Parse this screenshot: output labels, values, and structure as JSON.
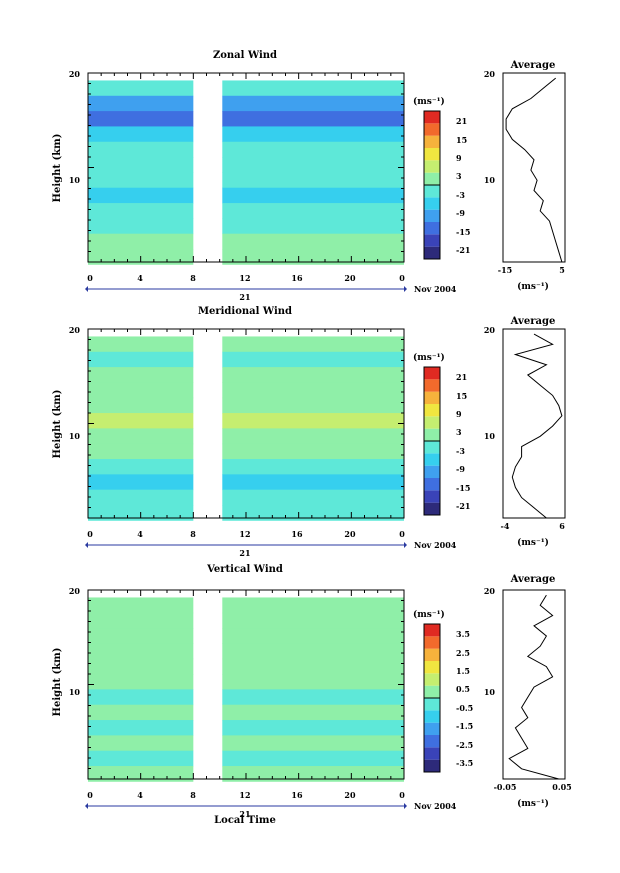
{
  "panels": [
    {
      "title": "Zonal Wind",
      "ylabel": "Height (km)",
      "y_ticks": [
        "20",
        "10"
      ],
      "x_ticks": [
        "0",
        "4",
        "8",
        "12",
        "16",
        "20",
        "0"
      ],
      "date_marker": "21",
      "month_label": "Nov 2004",
      "colorbar_unit": "(ms⁻¹)",
      "colorbar_ticks": [
        "21",
        "15",
        "9",
        "3",
        "-3",
        "-9",
        "-15",
        "-21"
      ],
      "avg_title": "Average",
      "avg_y_ticks": [
        "20",
        "10"
      ],
      "avg_x_ticks": [
        "-15",
        "5"
      ],
      "avg_xlabel": "(ms⁻¹)"
    },
    {
      "title": "Meridional Wind",
      "ylabel": "Height (km)",
      "y_ticks": [
        "20",
        "10"
      ],
      "x_ticks": [
        "0",
        "4",
        "8",
        "12",
        "16",
        "20",
        "0"
      ],
      "date_marker": "21",
      "month_label": "Nov 2004",
      "colorbar_unit": "(ms⁻¹)",
      "colorbar_ticks": [
        "21",
        "15",
        "9",
        "3",
        "-3",
        "-9",
        "-15",
        "-21"
      ],
      "avg_title": "Average",
      "avg_y_ticks": [
        "20",
        "10"
      ],
      "avg_x_ticks": [
        "-4",
        "6"
      ],
      "avg_xlabel": "(ms⁻¹)"
    },
    {
      "title": "Vertical Wind",
      "ylabel": "Height (km)",
      "y_ticks": [
        "20",
        "10"
      ],
      "x_ticks": [
        "0",
        "4",
        "8",
        "12",
        "16",
        "20",
        "0"
      ],
      "date_marker": "21",
      "month_label": "Nov 2004",
      "colorbar_unit": "(ms⁻¹)",
      "colorbar_ticks": [
        "3.5",
        "2.5",
        "1.5",
        "0.5",
        "-0.5",
        "-1.5",
        "-2.5",
        "-3.5"
      ],
      "avg_title": "Average",
      "avg_y_ticks": [
        "20",
        "10"
      ],
      "avg_x_ticks": [
        "-0.05",
        "0.05"
      ],
      "avg_xlabel": "(ms⁻¹)"
    }
  ],
  "xlabel": "Local Time",
  "colors": {
    "scale": [
      "#2d2a7a",
      "#3a43b8",
      "#3f6fe0",
      "#3fa0ef",
      "#36cfee",
      "#5ee8d8",
      "#8fefa8",
      "#c5ee70",
      "#f0e640",
      "#f6b23c",
      "#f26a2c",
      "#e02a22"
    ]
  },
  "chart_data": [
    {
      "type": "heatmap",
      "title": "Zonal Wind",
      "xlabel": "Local Time",
      "ylabel": "Height (km)",
      "x_range_hours": [
        0,
        24
      ],
      "ylim_km": [
        1.5,
        20
      ],
      "data_gap_hours": [
        8,
        10.2
      ],
      "colorbar_range": [
        -24,
        24
      ],
      "colorbar_ticks": [
        21,
        15,
        9,
        3,
        -3,
        -9,
        -15,
        -21
      ],
      "rows": [
        {
          "height_km": 18.5,
          "value": -4
        },
        {
          "height_km": 17.0,
          "value": -9
        },
        {
          "height_km": 15.5,
          "value": -14
        },
        {
          "height_km": 14.0,
          "value": -6
        },
        {
          "height_km": 12.5,
          "value": -3
        },
        {
          "height_km": 11.0,
          "value": -4
        },
        {
          "height_km": 9.5,
          "value": -2
        },
        {
          "height_km": 8.0,
          "value": -5
        },
        {
          "height_km": 6.5,
          "value": -2
        },
        {
          "height_km": 5.0,
          "value": -1
        },
        {
          "height_km": 3.5,
          "value": 1
        },
        {
          "height_km": 2.0,
          "value": 2
        }
      ],
      "average_profile": {
        "title": "Average",
        "xlim": [
          -15,
          5
        ],
        "x_ticks": [
          -15,
          5
        ],
        "points": [
          {
            "height_km": 19.5,
            "value": 2
          },
          {
            "height_km": 18.5,
            "value": -2
          },
          {
            "height_km": 17.5,
            "value": -6
          },
          {
            "height_km": 16.5,
            "value": -12
          },
          {
            "height_km": 15.5,
            "value": -14
          },
          {
            "height_km": 14.5,
            "value": -14
          },
          {
            "height_km": 13.5,
            "value": -12
          },
          {
            "height_km": 12.5,
            "value": -8
          },
          {
            "height_km": 11.5,
            "value": -5
          },
          {
            "height_km": 10.5,
            "value": -6
          },
          {
            "height_km": 9.5,
            "value": -4
          },
          {
            "height_km": 8.5,
            "value": -5
          },
          {
            "height_km": 7.5,
            "value": -2
          },
          {
            "height_km": 6.5,
            "value": -3
          },
          {
            "height_km": 5.5,
            "value": 0
          },
          {
            "height_km": 4.5,
            "value": 1
          },
          {
            "height_km": 3.5,
            "value": 2
          },
          {
            "height_km": 2.5,
            "value": 3
          },
          {
            "height_km": 1.5,
            "value": 4
          }
        ]
      }
    },
    {
      "type": "heatmap",
      "title": "Meridional Wind",
      "xlabel": "Local Time",
      "ylabel": "Height (km)",
      "x_range_hours": [
        0,
        24
      ],
      "ylim_km": [
        1.5,
        20
      ],
      "data_gap_hours": [
        8,
        10.2
      ],
      "colorbar_range": [
        -24,
        24
      ],
      "colorbar_ticks": [
        21,
        15,
        9,
        3,
        -3,
        -9,
        -15,
        -21
      ],
      "rows": [
        {
          "height_km": 18.5,
          "value": 0
        },
        {
          "height_km": 17.0,
          "value": -2
        },
        {
          "height_km": 15.5,
          "value": 1
        },
        {
          "height_km": 14.0,
          "value": 0
        },
        {
          "height_km": 12.5,
          "value": 3
        },
        {
          "height_km": 11.0,
          "value": 5
        },
        {
          "height_km": 9.5,
          "value": 2
        },
        {
          "height_km": 8.0,
          "value": 1
        },
        {
          "height_km": 6.5,
          "value": -2
        },
        {
          "height_km": 5.0,
          "value": -5
        },
        {
          "height_km": 3.5,
          "value": -1
        },
        {
          "height_km": 2.0,
          "value": -3
        }
      ],
      "average_profile": {
        "title": "Average",
        "xlim": [
          -4,
          6
        ],
        "x_ticks": [
          -4,
          6
        ],
        "points": [
          {
            "height_km": 19.5,
            "value": 1
          },
          {
            "height_km": 18.5,
            "value": 4
          },
          {
            "height_km": 17.5,
            "value": -2
          },
          {
            "height_km": 16.5,
            "value": 3
          },
          {
            "height_km": 15.5,
            "value": 0
          },
          {
            "height_km": 14.5,
            "value": 2
          },
          {
            "height_km": 13.5,
            "value": 4
          },
          {
            "height_km": 12.5,
            "value": 5
          },
          {
            "height_km": 11.5,
            "value": 5.5
          },
          {
            "height_km": 10.5,
            "value": 4
          },
          {
            "height_km": 9.5,
            "value": 2
          },
          {
            "height_km": 8.5,
            "value": -1
          },
          {
            "height_km": 7.5,
            "value": -1
          },
          {
            "height_km": 6.5,
            "value": -2
          },
          {
            "height_km": 5.5,
            "value": -2.5
          },
          {
            "height_km": 4.5,
            "value": -2
          },
          {
            "height_km": 3.5,
            "value": -1
          },
          {
            "height_km": 2.5,
            "value": 1
          },
          {
            "height_km": 1.5,
            "value": 3
          }
        ]
      }
    },
    {
      "type": "heatmap",
      "title": "Vertical Wind",
      "xlabel": "Local Time",
      "ylabel": "Height (km)",
      "x_range_hours": [
        0,
        24
      ],
      "ylim_km": [
        1.5,
        20
      ],
      "data_gap_hours": [
        8,
        10.2
      ],
      "colorbar_range": [
        -4,
        4
      ],
      "colorbar_ticks": [
        3.5,
        2.5,
        1.5,
        0.5,
        -0.5,
        -1.5,
        -2.5,
        -3.5
      ],
      "rows": [
        {
          "height_km": 18.5,
          "value": 0.3
        },
        {
          "height_km": 17.0,
          "value": 0.1
        },
        {
          "height_km": 15.5,
          "value": 0.2
        },
        {
          "height_km": 14.0,
          "value": 0.4
        },
        {
          "height_km": 12.5,
          "value": 0.2
        },
        {
          "height_km": 11.0,
          "value": 0.1
        },
        {
          "height_km": 9.5,
          "value": -0.2
        },
        {
          "height_km": 8.0,
          "value": 0.1
        },
        {
          "height_km": 6.5,
          "value": -0.3
        },
        {
          "height_km": 5.0,
          "value": 0.2
        },
        {
          "height_km": 3.5,
          "value": -0.1
        },
        {
          "height_km": 2.0,
          "value": 0.3
        }
      ],
      "average_profile": {
        "title": "Average",
        "xlim": [
          -0.05,
          0.05
        ],
        "x_ticks": [
          -0.05,
          0.05
        ],
        "points": [
          {
            "height_km": 19.5,
            "value": 0.02
          },
          {
            "height_km": 18.5,
            "value": 0.01
          },
          {
            "height_km": 17.5,
            "value": 0.03
          },
          {
            "height_km": 16.5,
            "value": 0.0
          },
          {
            "height_km": 15.5,
            "value": 0.02
          },
          {
            "height_km": 14.5,
            "value": 0.01
          },
          {
            "height_km": 13.5,
            "value": -0.01
          },
          {
            "height_km": 12.5,
            "value": 0.02
          },
          {
            "height_km": 11.5,
            "value": 0.03
          },
          {
            "height_km": 10.5,
            "value": 0.0
          },
          {
            "height_km": 9.5,
            "value": -0.01
          },
          {
            "height_km": 8.5,
            "value": -0.02
          },
          {
            "height_km": 7.5,
            "value": -0.01
          },
          {
            "height_km": 6.5,
            "value": -0.03
          },
          {
            "height_km": 5.5,
            "value": -0.02
          },
          {
            "height_km": 4.5,
            "value": -0.01
          },
          {
            "height_km": 3.5,
            "value": -0.04
          },
          {
            "height_km": 2.5,
            "value": -0.02
          },
          {
            "height_km": 1.5,
            "value": 0.04
          }
        ]
      }
    }
  ]
}
